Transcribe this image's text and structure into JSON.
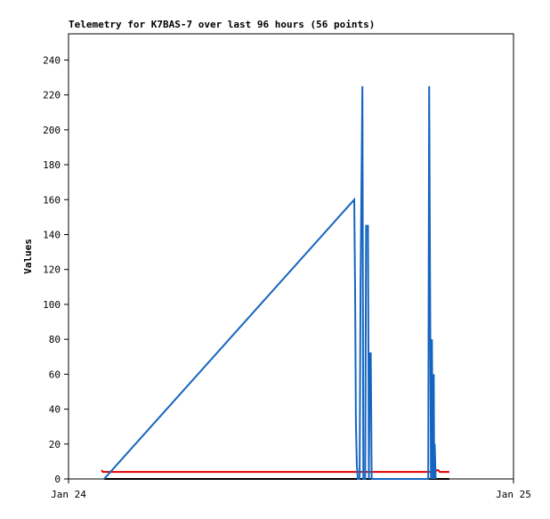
{
  "chart_data": {
    "type": "line",
    "title": "Telemetry for K7BAS-7 over last 96 hours (56 points)",
    "y_label": "Values",
    "xlim": [
      0,
      24
    ],
    "xticks": [
      {
        "value": 0,
        "label": "Jan 24"
      },
      {
        "value": 24,
        "label": "Jan 25"
      }
    ],
    "ylim": [
      0,
      255
    ],
    "yticks": [
      0,
      20,
      40,
      60,
      80,
      100,
      120,
      140,
      160,
      180,
      200,
      220,
      240
    ],
    "grid": false,
    "series": [
      {
        "color": "#1565c0",
        "x": [
          1.92,
          15.41,
          15.46,
          15.5,
          15.55,
          15.6,
          15.7,
          15.75,
          15.85,
          15.9,
          16.0,
          16.05,
          16.15,
          16.2,
          16.25,
          16.3,
          16.35,
          19.4,
          19.45,
          19.5,
          19.55,
          19.6,
          19.65,
          19.7,
          19.72,
          19.75,
          19.8
        ],
        "values": [
          0,
          160,
          104,
          32,
          8,
          0,
          0,
          112,
          225,
          0,
          0,
          145,
          145,
          0,
          72,
          72,
          0,
          0,
          225,
          112,
          0,
          80,
          0,
          60,
          0,
          20,
          0
        ]
      },
      {
        "color": "#e00000",
        "x": [
          1.78,
          1.86,
          19.78,
          19.85,
          19.95,
          20.02,
          20.54
        ],
        "values": [
          5,
          4,
          4,
          5,
          5,
          4,
          4
        ]
      },
      {
        "color": "#000000",
        "x": [
          1.92,
          20.54
        ],
        "values": [
          0,
          0
        ]
      }
    ]
  }
}
